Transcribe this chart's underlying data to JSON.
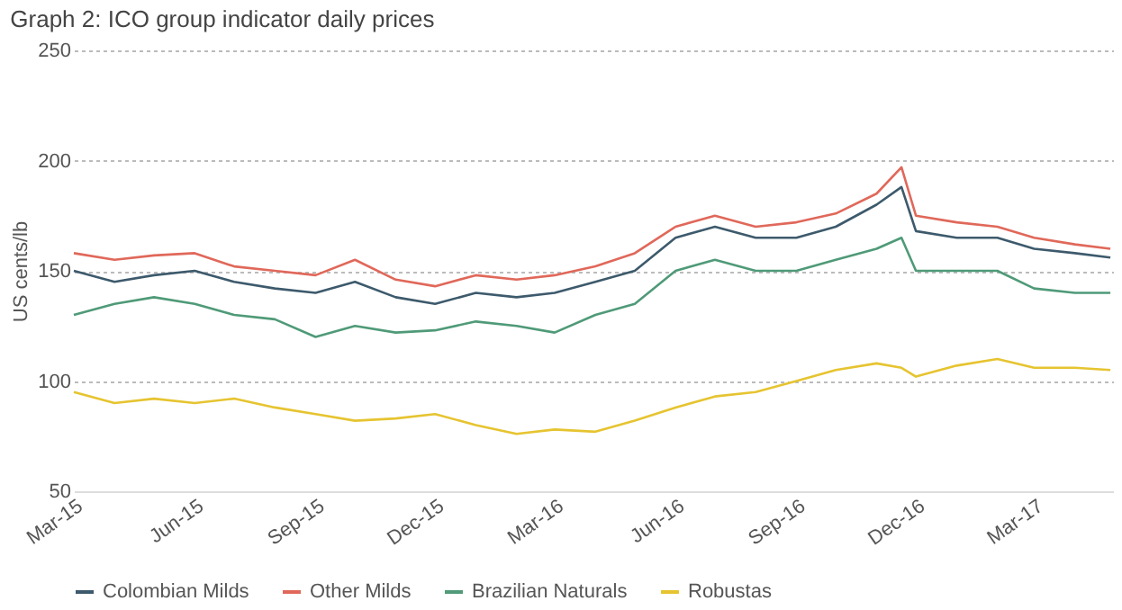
{
  "chart_data": {
    "type": "line",
    "title": "Graph 2: ICO group indicator daily prices",
    "ylabel": "US cents/lb",
    "x": [
      "2015-03-01",
      "2015-04-01",
      "2015-05-01",
      "2015-06-01",
      "2015-07-01",
      "2015-08-01",
      "2015-09-01",
      "2015-10-01",
      "2015-11-01",
      "2015-12-01",
      "2016-01-01",
      "2016-02-01",
      "2016-03-01",
      "2016-04-01",
      "2016-05-01",
      "2016-06-01",
      "2016-07-01",
      "2016-08-01",
      "2016-09-01",
      "2016-10-01",
      "2016-11-01",
      "2016-11-20",
      "2016-12-01",
      "2017-01-01",
      "2017-02-01",
      "2017-03-01",
      "2017-04-01",
      "2017-04-28"
    ],
    "series": [
      {
        "name": "Colombian Milds",
        "color": "#3d5a6c",
        "values": [
          150,
          145,
          148,
          150,
          145,
          142,
          140,
          145,
          138,
          135,
          140,
          138,
          140,
          145,
          150,
          165,
          170,
          165,
          165,
          170,
          180,
          188,
          168,
          165,
          165,
          160,
          158,
          156
        ]
      },
      {
        "name": "Other Milds",
        "color": "#e0685a",
        "values": [
          158,
          155,
          157,
          158,
          152,
          150,
          148,
          155,
          146,
          143,
          148,
          146,
          148,
          152,
          158,
          170,
          175,
          170,
          172,
          176,
          185,
          197,
          175,
          172,
          170,
          165,
          162,
          160
        ]
      },
      {
        "name": "Brazilian Naturals",
        "color": "#4f9a78",
        "values": [
          130,
          135,
          138,
          135,
          130,
          128,
          120,
          125,
          122,
          123,
          127,
          125,
          122,
          130,
          135,
          150,
          155,
          150,
          150,
          155,
          160,
          165,
          150,
          150,
          150,
          142,
          140,
          140
        ]
      },
      {
        "name": "Robustas",
        "color": "#e6c430",
        "values": [
          95,
          90,
          92,
          90,
          92,
          88,
          85,
          82,
          83,
          85,
          80,
          76,
          78,
          77,
          82,
          88,
          93,
          95,
          100,
          105,
          108,
          106,
          102,
          107,
          110,
          106,
          106,
          105
        ]
      }
    ],
    "xlim": [
      "2015-03-01",
      "2017-04-30"
    ],
    "xticks": [
      {
        "value": "2015-03-01",
        "label": "Mar-15"
      },
      {
        "value": "2015-06-01",
        "label": "Jun-15"
      },
      {
        "value": "2015-09-01",
        "label": "Sep-15"
      },
      {
        "value": "2015-12-01",
        "label": "Dec-15"
      },
      {
        "value": "2016-03-01",
        "label": "Mar-16"
      },
      {
        "value": "2016-06-01",
        "label": "Jun-16"
      },
      {
        "value": "2016-09-01",
        "label": "Sep-16"
      },
      {
        "value": "2016-12-01",
        "label": "Dec-16"
      },
      {
        "value": "2017-03-01",
        "label": "Mar-17"
      }
    ],
    "ylim": [
      50,
      250
    ],
    "yticks": [
      50,
      100,
      150,
      200,
      250
    ],
    "grid": "y",
    "legend": "bottom",
    "marker": "none",
    "line_style": "solid"
  }
}
